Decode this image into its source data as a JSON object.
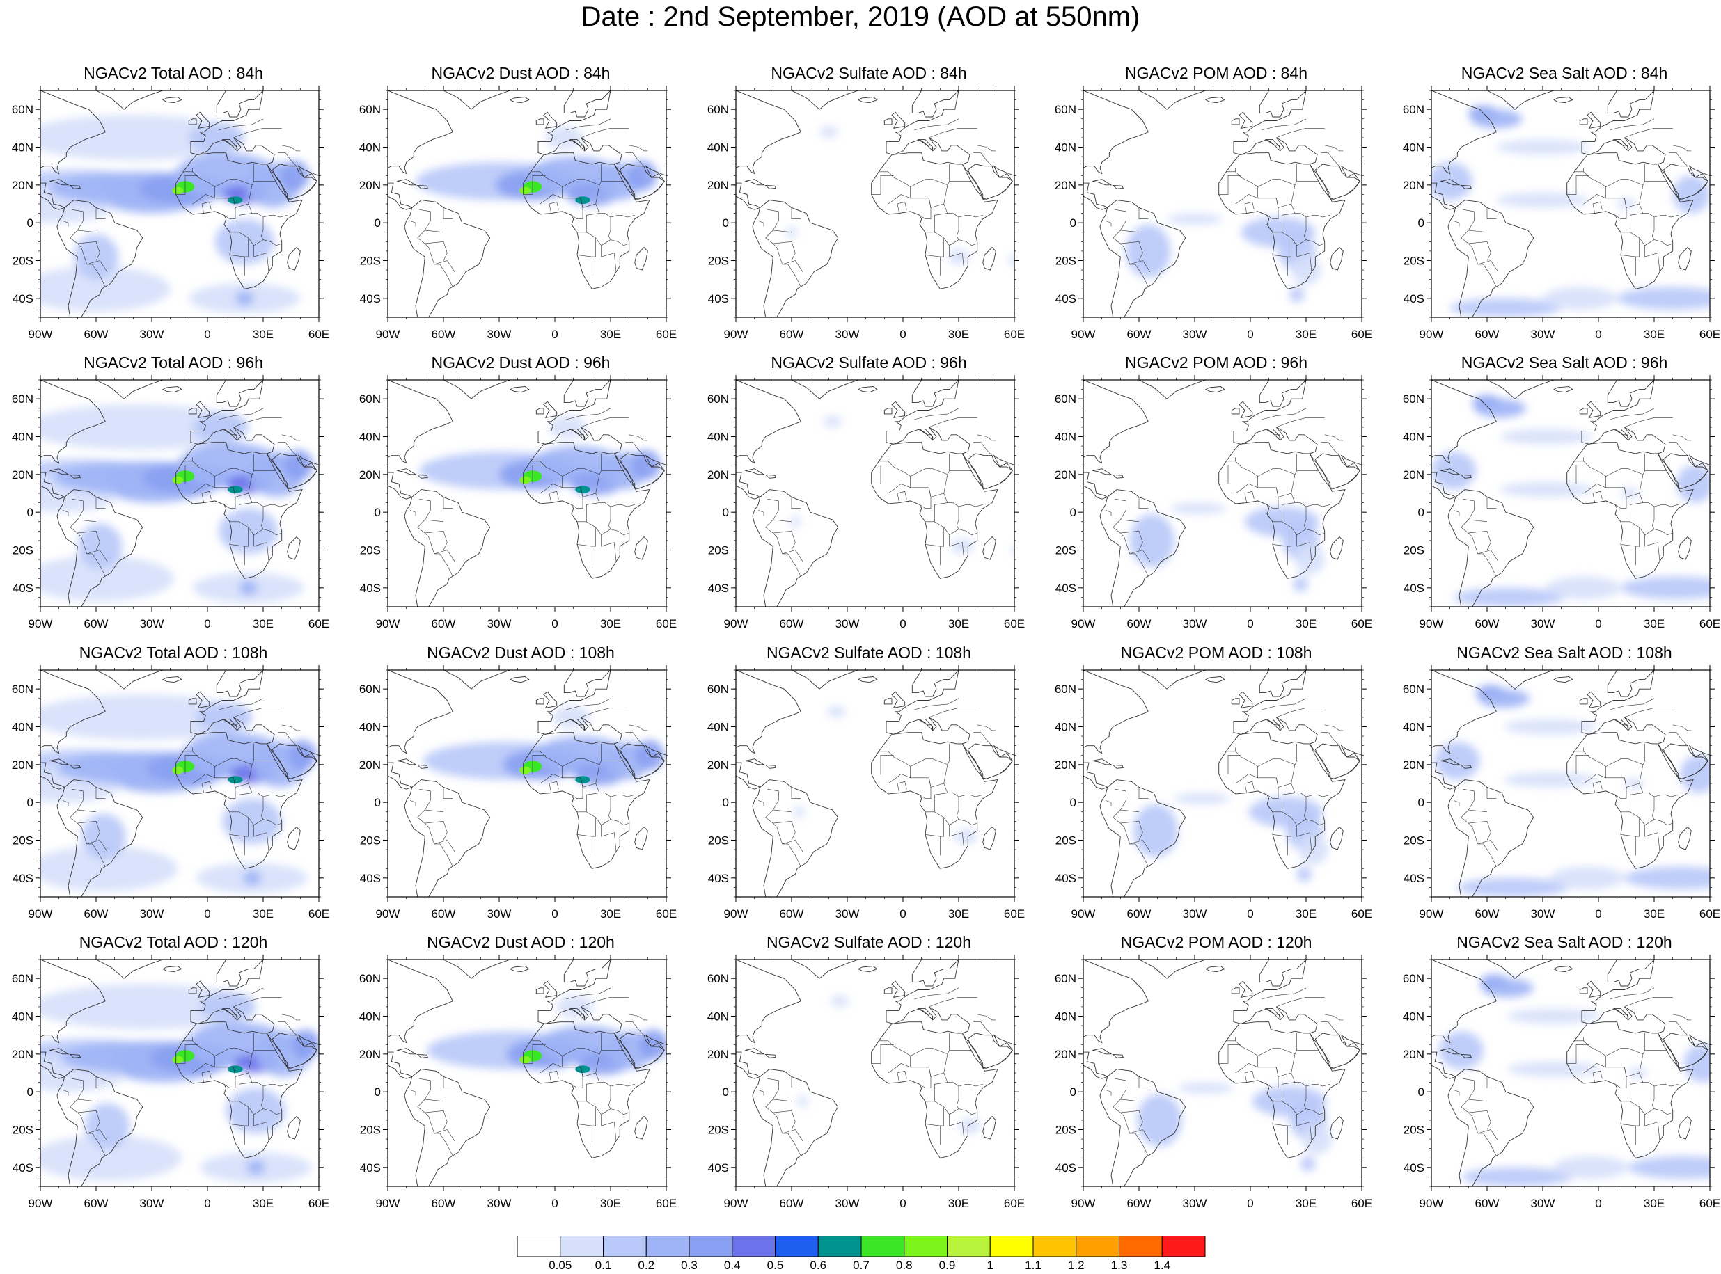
{
  "title": "Date : 2nd September, 2019 (AOD at 550nm)",
  "panels": [
    [
      "NGACv2 Total AOD : 84h",
      "NGACv2 Dust AOD : 84h",
      "NGACv2 Sulfate AOD : 84h",
      "NGACv2 POM AOD : 84h",
      "NGACv2 Sea Salt AOD : 84h"
    ],
    [
      "NGACv2 Total AOD : 96h",
      "NGACv2 Dust AOD : 96h",
      "NGACv2 Sulfate AOD : 96h",
      "NGACv2 POM AOD : 96h",
      "NGACv2 Sea Salt AOD : 96h"
    ],
    [
      "NGACv2 Total AOD : 108h",
      "NGACv2 Dust AOD : 108h",
      "NGACv2 Sulfate AOD : 108h",
      "NGACv2 POM AOD : 108h",
      "NGACv2 Sea Salt AOD : 108h"
    ],
    [
      "NGACv2 Total AOD : 120h",
      "NGACv2 Dust AOD : 120h",
      "NGACv2 Sulfate AOD : 120h",
      "NGACv2 POM AOD : 120h",
      "NGACv2 Sea Salt  AOD : 120h"
    ]
  ],
  "lat_labels": [
    "60N",
    "40N",
    "20N",
    "0",
    "20S",
    "40S"
  ],
  "lon_labels": [
    "90W",
    "60W",
    "30W",
    "0",
    "30E",
    "60E"
  ],
  "colorbar": {
    "labels": [
      "0.05",
      "0.1",
      "0.2",
      "0.3",
      "0.4",
      "0.5",
      "0.6",
      "0.7",
      "0.8",
      "0.9",
      "1",
      "1.1",
      "1.2",
      "1.3",
      "1.4"
    ],
    "colors": [
      "#ffffff",
      "#d6e0fb",
      "#b8c8f8",
      "#9fb4f6",
      "#8aa0f2",
      "#6b72ea",
      "#1f5ff0",
      "#00928f",
      "#3be626",
      "#7cf51f",
      "#b8f23c",
      "#ffff00",
      "#ffc400",
      "#ff9f00",
      "#ff6a00",
      "#ff1a1a"
    ]
  }
}
